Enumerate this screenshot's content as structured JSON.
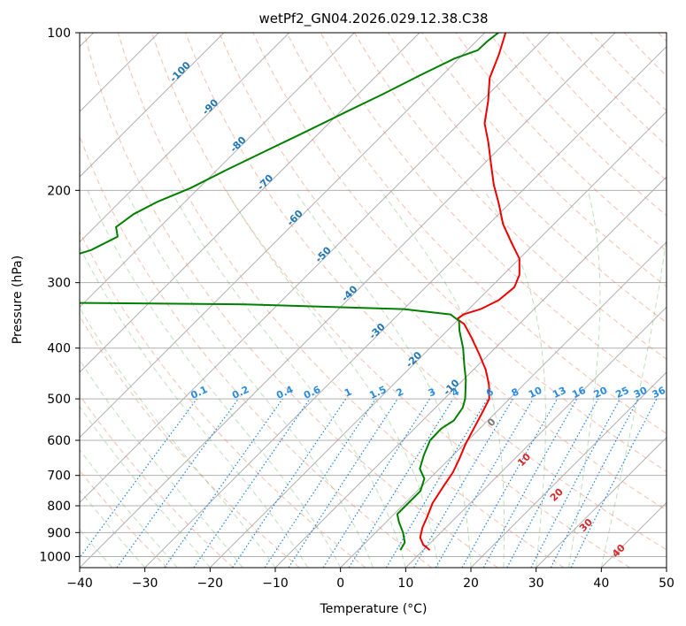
{
  "chart_data": {
    "type": "line",
    "title": "wetPf2_GN04.2026.029.12.38.C38",
    "xlabel": "Temperature (°C)",
    "ylabel": "Pressure (hPa)",
    "xlim": [
      -40,
      50
    ],
    "ylim": [
      1050,
      100
    ],
    "x_ticks": [
      -40,
      -30,
      -20,
      -10,
      0,
      10,
      20,
      30,
      40,
      50
    ],
    "y_ticks": [
      100,
      200,
      300,
      400,
      500,
      600,
      700,
      800,
      900,
      1000
    ],
    "y_scale": "log",
    "grid": true,
    "skew": 30,
    "series": [
      {
        "name": "",
        "color": "#ee0000",
        "points": [
          [
            11,
            972
          ],
          [
            9.2,
            950
          ],
          [
            7.6,
            920
          ],
          [
            6.4,
            880
          ],
          [
            5.5,
            840
          ],
          [
            4.2,
            790
          ],
          [
            3.4,
            740
          ],
          [
            2.6,
            690
          ],
          [
            1.5,
            650
          ],
          [
            0.2,
            610
          ],
          [
            -0.9,
            570
          ],
          [
            -2.1,
            530
          ],
          [
            -3.1,
            500
          ],
          [
            -5.3,
            470
          ],
          [
            -8.1,
            440
          ],
          [
            -11.6,
            410
          ],
          [
            -15.5,
            380
          ],
          [
            -18.4,
            360
          ],
          [
            -20.3,
            352
          ],
          [
            -20,
            345
          ],
          [
            -18.2,
            337
          ],
          [
            -16.8,
            324
          ],
          [
            -16.4,
            306
          ],
          [
            -17.5,
            290
          ],
          [
            -20,
            270
          ],
          [
            -23.6,
            252
          ],
          [
            -27.8,
            232
          ],
          [
            -31.6,
            212
          ],
          [
            -35.3,
            195
          ],
          [
            -38.9,
            178
          ],
          [
            -42.6,
            162
          ],
          [
            -46.1,
            149
          ],
          [
            -49,
            135
          ],
          [
            -52.3,
            122
          ],
          [
            -54.5,
            110
          ],
          [
            -56.8,
            100
          ]
        ]
      },
      {
        "name": "",
        "color": "#008000",
        "points": [
          [
            6.5,
            972
          ],
          [
            6,
            940
          ],
          [
            4.2,
            900
          ],
          [
            2,
            860
          ],
          [
            0.5,
            830
          ],
          [
            0.5,
            800
          ],
          [
            0.5,
            750
          ],
          [
            -0.8,
            710
          ],
          [
            -3,
            680
          ],
          [
            -4.5,
            640
          ],
          [
            -5.8,
            600
          ],
          [
            -5.9,
            570
          ],
          [
            -5.2,
            550
          ],
          [
            -5.8,
            520
          ],
          [
            -6.8,
            500
          ],
          [
            -9.6,
            460
          ],
          [
            -12.2,
            430
          ],
          [
            -14.9,
            400
          ],
          [
            -18.2,
            370
          ],
          [
            -19.7,
            355
          ],
          [
            -22,
            345
          ],
          [
            -30,
            337
          ],
          [
            -55,
            330
          ],
          [
            -80,
            328
          ],
          [
            -105,
            328
          ],
          [
            -87,
            260
          ],
          [
            -85,
            245
          ],
          [
            -86.7,
            235
          ],
          [
            -86,
            222
          ],
          [
            -84.2,
            210
          ],
          [
            -81.3,
            198
          ],
          [
            -78.6,
            183
          ],
          [
            -75.4,
            168
          ],
          [
            -72.4,
            155
          ],
          [
            -69.2,
            142
          ],
          [
            -66.2,
            131
          ],
          [
            -63.2,
            120
          ],
          [
            -60.7,
            112
          ],
          [
            -58.4,
            108
          ],
          [
            -58.3,
            104
          ],
          [
            -57.9,
            100
          ]
        ]
      }
    ],
    "mixing_ratio_labels": [
      "0.1",
      "0.2",
      "0.4",
      "0.6",
      "1",
      "1.5",
      "2",
      "3",
      "4",
      "6",
      "8",
      "10",
      "13",
      "16",
      "20",
      "25",
      "30",
      "36"
    ],
    "dry_adiabat_labels": [
      "-100",
      "-90",
      "-80",
      "-70",
      "-60",
      "-50",
      "-40",
      "-30",
      "-20",
      "-10"
    ],
    "moist_adiabat_labels": [
      "0",
      "10",
      "20",
      "30",
      "40"
    ]
  }
}
